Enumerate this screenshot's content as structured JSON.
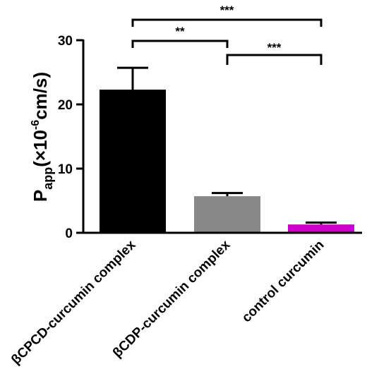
{
  "chart_data": {
    "type": "bar",
    "categories": [
      "βCPCD-curcumin complex",
      "βCDP-curcumin complex",
      "control curcumin"
    ],
    "values": [
      22.3,
      5.7,
      1.3
    ],
    "errors": [
      3.4,
      0.5,
      0.3
    ],
    "colors": [
      "#000000",
      "#888888",
      "#cc00cc"
    ],
    "ylabel": {
      "main": "P",
      "sub": "app",
      "open": "(×10",
      "exp": "-6",
      "unit": "cm/s)"
    },
    "ylim": [
      0,
      30
    ],
    "yticks": [
      "0",
      "10",
      "20",
      "30"
    ],
    "significance": [
      {
        "from": 0,
        "to": 2,
        "label": "***"
      },
      {
        "from": 0,
        "to": 1,
        "label": "**"
      },
      {
        "from": 1,
        "to": 2,
        "label": "***"
      }
    ],
    "grid": false
  }
}
